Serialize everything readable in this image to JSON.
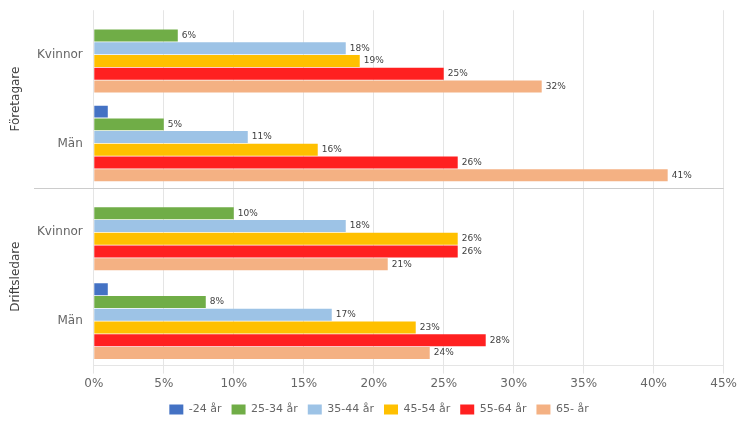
{
  "chart_data": {
    "type": "bar",
    "orientation": "horizontal",
    "categories": [
      "Kvinnor",
      "Män",
      "Kvinnor",
      "Män"
    ],
    "sections": [
      "Företagare",
      "Företagare",
      "Driftsledare",
      "Driftsledare"
    ],
    "series": [
      {
        "name": "-24 år",
        "color": "#4472C4",
        "values": [
          0,
          1,
          0,
          1
        ],
        "value_labels": [
          null,
          null,
          null,
          null
        ]
      },
      {
        "name": "25-34 år",
        "color": "#70AD47",
        "values": [
          6,
          5,
          10,
          8
        ],
        "value_labels": [
          "6%",
          "5%",
          "10%",
          "8%"
        ]
      },
      {
        "name": "35-44 år",
        "color": "#9DC3E6",
        "values": [
          18,
          11,
          18,
          17
        ],
        "value_labels": [
          "18%",
          "11%",
          "18%",
          "17%"
        ]
      },
      {
        "name": "45-54 år",
        "color": "#FFC000",
        "values": [
          19,
          16,
          26,
          23
        ],
        "value_labels": [
          "19%",
          "16%",
          "26%",
          "23%"
        ]
      },
      {
        "name": "55-64 år",
        "color": "#FF2020",
        "values": [
          25,
          26,
          26,
          28
        ],
        "value_labels": [
          "25%",
          "26%",
          "26%",
          "28%"
        ]
      },
      {
        "name": "65- år",
        "color": "#F4B183",
        "values": [
          32,
          41,
          21,
          24
        ],
        "value_labels": [
          "32%",
          "41%",
          "21%",
          "24%"
        ]
      }
    ],
    "xlim": [
      0,
      45
    ],
    "xticks": [
      {
        "value": 0,
        "label": "0%"
      },
      {
        "value": 5,
        "label": "5%"
      },
      {
        "value": 10,
        "label": "10%"
      },
      {
        "value": 15,
        "label": "15%"
      },
      {
        "value": 20,
        "label": "20%"
      },
      {
        "value": 25,
        "label": "25%"
      },
      {
        "value": 30,
        "label": "30%"
      },
      {
        "value": 35,
        "label": "35%"
      },
      {
        "value": 40,
        "label": "40%"
      },
      {
        "value": 45,
        "label": "45%"
      }
    ],
    "grid": "x",
    "legend": "bottom",
    "data_labels": true
  }
}
